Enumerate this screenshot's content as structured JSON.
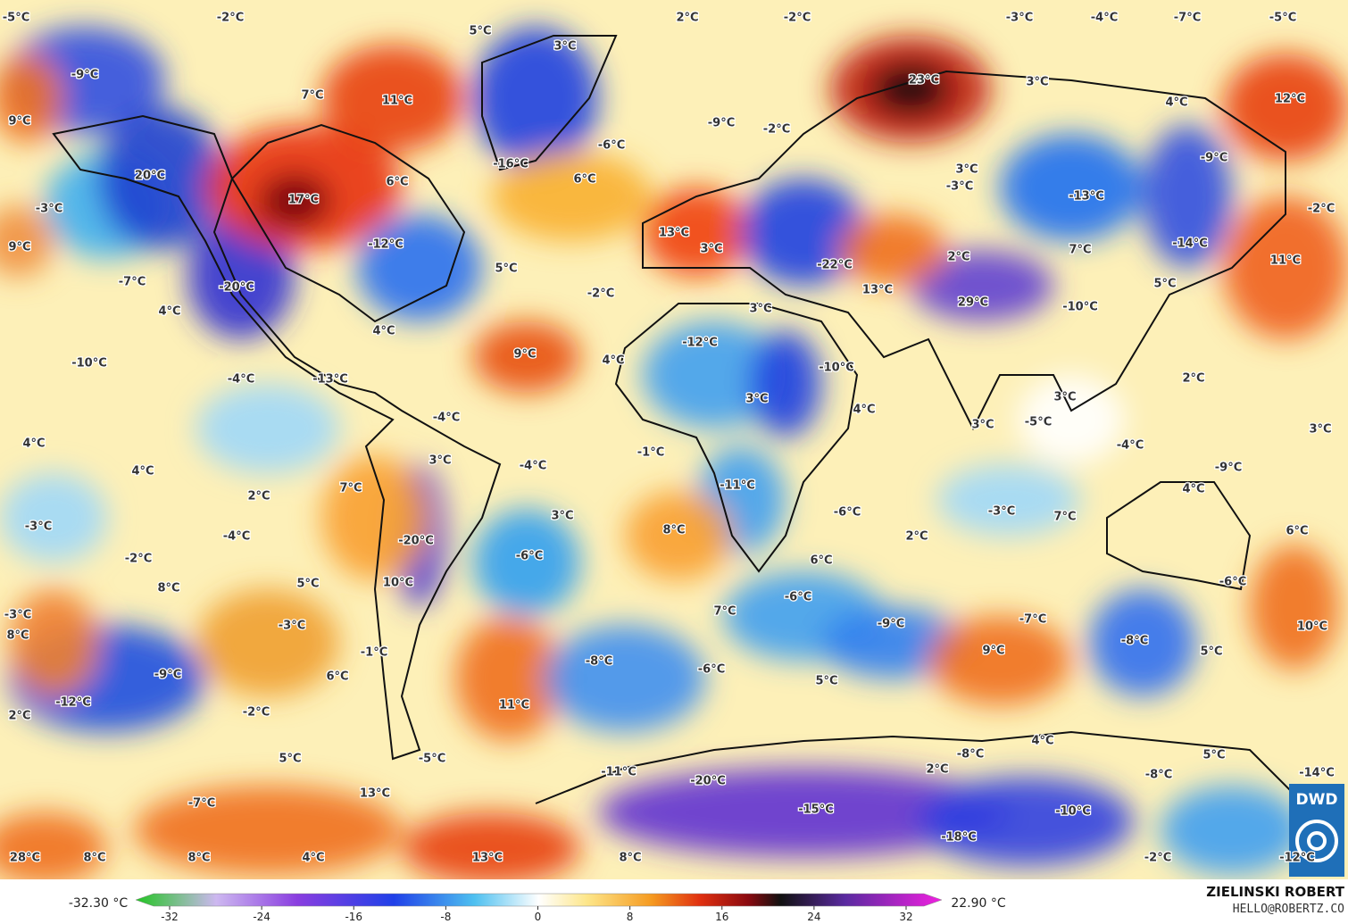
{
  "map": {
    "labels": [
      "-5°C",
      "-2°C",
      "5°C",
      "3°C",
      "2°C",
      "-2°C",
      "-3°C",
      "-4°C",
      "-7°C",
      "-5°C",
      "-9°C",
      "7°C",
      "11°C",
      "23°C",
      "3°C",
      "4°C",
      "12°C",
      "9°C",
      "-9°C",
      "-2°C",
      "-6°C",
      "-16°C",
      "-9°C",
      "20°C",
      "6°C",
      "6°C",
      "3°C",
      "-3°C",
      "-13°C",
      "-3°C",
      "17°C",
      "-2°C",
      "9°C",
      "-12°C",
      "13°C",
      "5°C",
      "3°C",
      "2°C",
      "7°C",
      "-14°C",
      "11°C",
      "-7°C",
      "-20°C",
      "-2°C",
      "-22°C",
      "13°C",
      "5°C",
      "29°C",
      "-10°C",
      "4°C",
      "3°C",
      "4°C",
      "9°C",
      "-12°C",
      "4°C",
      "-10°C",
      "-10°C",
      "-4°C",
      "-13°C",
      "2°C",
      "3°C",
      "3°C",
      "4°C",
      "-4°C",
      "3°C",
      "-5°C",
      "3°C",
      "4°C",
      "-1°C",
      "3°C",
      "-4°C",
      "-4°C",
      "4°C",
      "-9°C",
      "-11°C",
      "7°C",
      "4°C",
      "2°C",
      "-3°C",
      "3°C",
      "-6°C",
      "-3°C",
      "7°C",
      "-4°C",
      "8°C",
      "-20°C",
      "2°C",
      "6°C",
      "-2°C",
      "-6°C",
      "6°C",
      "-6°C",
      "8°C",
      "5°C",
      "10°C",
      "-6°C",
      "7°C",
      "-3°C",
      "8°C",
      "-3°C",
      "-9°C",
      "-7°C",
      "-8°C",
      "10°C",
      "-1°C",
      "9°C",
      "5°C",
      "-9°C",
      "-8°C",
      "6°C",
      "-6°C",
      "5°C",
      "2°C",
      "-12°C",
      "-2°C",
      "11°C",
      "4°C",
      "5°C",
      "-5°C",
      "-8°C",
      "5°C",
      "2°C",
      "-11°C",
      "-20°C",
      "-8°C",
      "-14°C",
      "13°C",
      "-7°C",
      "-15°C",
      "-10°C",
      "-18°C",
      "28°C",
      "8°C",
      "8°C",
      "4°C",
      "13°C",
      "8°C",
      "-2°C",
      "-12°C"
    ]
  },
  "colorbar": {
    "min_label": "-32.30 °C",
    "max_label": "22.90 °C",
    "ticks": [
      -32,
      -24,
      -16,
      -8,
      0,
      8,
      16,
      24,
      32
    ]
  },
  "credit": {
    "name": "ZIELINSKI ROBERT",
    "email": "HELLO@ROBERTZ.CO"
  },
  "logo": "DWD"
}
